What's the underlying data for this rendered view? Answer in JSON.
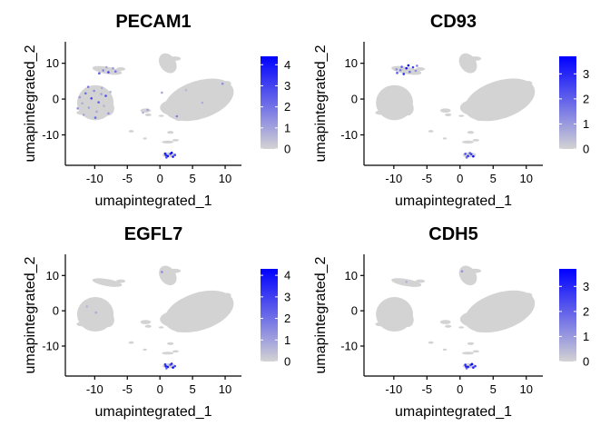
{
  "chart_data": [
    {
      "type": "scatter",
      "title": "PECAM1",
      "xlabel": "umapintegrated_1",
      "ylabel": "umapintegrated_2",
      "xlim": [
        -14.5,
        12.5
      ],
      "ylim": [
        -18.5,
        16
      ],
      "xticks": [
        -10,
        -5,
        0,
        5,
        10
      ],
      "yticks": [
        -10,
        0,
        10
      ],
      "xtick_labels": [
        "-10",
        "-5",
        "0",
        "5",
        "10"
      ],
      "ytick_labels": [
        "-10",
        "0",
        "10"
      ],
      "colorbar": {
        "min": 0,
        "max": 4.4,
        "ticks": [
          0,
          1,
          2,
          3,
          4
        ],
        "tick_labels": [
          "0",
          "1",
          "2",
          "3",
          "4"
        ],
        "low_color": "#d3d3d3",
        "high_color": "#0000ff"
      },
      "expressing_points": [
        {
          "x": -12.3,
          "y": 0.5,
          "v": 1.2
        },
        {
          "x": -11.9,
          "y": -1.2,
          "v": 0.8
        },
        {
          "x": -11.4,
          "y": 1.6,
          "v": 2.1
        },
        {
          "x": -10.9,
          "y": -2.4,
          "v": 1.0
        },
        {
          "x": -10.5,
          "y": 0.2,
          "v": 3.0
        },
        {
          "x": -10.1,
          "y": 2.3,
          "v": 1.5
        },
        {
          "x": -9.7,
          "y": -3.5,
          "v": 0.9
        },
        {
          "x": -9.4,
          "y": -0.9,
          "v": 2.4
        },
        {
          "x": -9.0,
          "y": 1.4,
          "v": 1.1
        },
        {
          "x": -8.6,
          "y": -1.9,
          "v": 0.7
        },
        {
          "x": -8.3,
          "y": 0.9,
          "v": 2.8
        },
        {
          "x": -7.9,
          "y": -4.0,
          "v": 1.3
        },
        {
          "x": -7.6,
          "y": 2.0,
          "v": 0.6
        },
        {
          "x": -11.0,
          "y": 3.4,
          "v": 1.9
        },
        {
          "x": -12.6,
          "y": -2.6,
          "v": 1.4
        },
        {
          "x": -9.9,
          "y": -5.2,
          "v": 2.2
        },
        {
          "x": -8.9,
          "y": 3.1,
          "v": 0.8
        },
        {
          "x": -11.7,
          "y": -4.4,
          "v": 1.0
        },
        {
          "x": -9.3,
          "y": 7.2,
          "v": 2.5
        },
        {
          "x": -8.7,
          "y": 8.0,
          "v": 1.6
        },
        {
          "x": -7.9,
          "y": 7.5,
          "v": 3.1
        },
        {
          "x": -7.2,
          "y": 8.6,
          "v": 1.2
        },
        {
          "x": -6.8,
          "y": 7.7,
          "v": 2.0
        },
        {
          "x": -8.2,
          "y": 8.9,
          "v": 0.9
        },
        {
          "x": -1.9,
          "y": -3.0,
          "v": 1.1
        },
        {
          "x": -2.6,
          "y": -3.8,
          "v": 0.7
        },
        {
          "x": 0.3,
          "y": 1.8,
          "v": 0.9
        },
        {
          "x": 2.6,
          "y": -4.8,
          "v": 1.7
        },
        {
          "x": 9.6,
          "y": 4.3,
          "v": 1.5
        },
        {
          "x": 6.5,
          "y": -1.0,
          "v": 0.8
        },
        {
          "x": 4.0,
          "y": 2.5,
          "v": 0.6
        },
        {
          "x": 0.8,
          "y": -15.2,
          "v": 3.8
        },
        {
          "x": 1.2,
          "y": -15.9,
          "v": 4.1
        },
        {
          "x": 1.6,
          "y": -15.3,
          "v": 3.3
        },
        {
          "x": 2.0,
          "y": -16.1,
          "v": 3.9
        },
        {
          "x": 1.0,
          "y": -16.3,
          "v": 2.8
        },
        {
          "x": 1.8,
          "y": -15.0,
          "v": 4.3
        },
        {
          "x": 2.3,
          "y": -15.6,
          "v": 3.0
        },
        {
          "x": 0.9,
          "y": -15.6,
          "v": 3.6
        }
      ]
    },
    {
      "type": "scatter",
      "title": "CD93",
      "xlabel": "umapintegrated_1",
      "ylabel": "umapintegrated_2",
      "xlim": [
        -14.5,
        12.5
      ],
      "ylim": [
        -18.5,
        16
      ],
      "xticks": [
        -10,
        -5,
        0,
        5,
        10
      ],
      "yticks": [
        -10,
        0,
        10
      ],
      "xtick_labels": [
        "-10",
        "-5",
        "0",
        "5",
        "10"
      ],
      "ytick_labels": [
        "-10",
        "0",
        "10"
      ],
      "colorbar": {
        "min": 0,
        "max": 3.7,
        "ticks": [
          0,
          1,
          2,
          3
        ],
        "tick_labels": [
          "0",
          "1",
          "2",
          "3"
        ],
        "low_color": "#d3d3d3",
        "high_color": "#0000ff"
      },
      "expressing_points": [
        {
          "x": -9.5,
          "y": 7.3,
          "v": 2.2
        },
        {
          "x": -9.0,
          "y": 8.1,
          "v": 1.6
        },
        {
          "x": -8.5,
          "y": 7.0,
          "v": 2.9
        },
        {
          "x": -8.1,
          "y": 8.6,
          "v": 3.4
        },
        {
          "x": -7.6,
          "y": 7.6,
          "v": 1.8
        },
        {
          "x": -7.1,
          "y": 8.9,
          "v": 2.6
        },
        {
          "x": -6.7,
          "y": 7.9,
          "v": 1.2
        },
        {
          "x": -8.8,
          "y": 9.0,
          "v": 2.0
        },
        {
          "x": -7.8,
          "y": 9.4,
          "v": 3.6
        },
        {
          "x": -6.5,
          "y": 9.3,
          "v": 1.4
        },
        {
          "x": -9.6,
          "y": 8.3,
          "v": 1.1
        },
        {
          "x": 0.8,
          "y": -15.3,
          "v": 2.4
        },
        {
          "x": 1.2,
          "y": -15.9,
          "v": 3.0
        },
        {
          "x": 1.7,
          "y": -15.4,
          "v": 2.7
        },
        {
          "x": 2.0,
          "y": -16.0,
          "v": 3.5
        },
        {
          "x": 1.0,
          "y": -16.3,
          "v": 1.8
        },
        {
          "x": 1.5,
          "y": -15.1,
          "v": 2.2
        }
      ]
    },
    {
      "type": "scatter",
      "title": "EGFL7",
      "xlabel": "umapintegrated_1",
      "ylabel": "umapintegrated_2",
      "xlim": [
        -14.5,
        12.5
      ],
      "ylim": [
        -18.5,
        16
      ],
      "xticks": [
        -10,
        -5,
        0,
        5,
        10
      ],
      "yticks": [
        -10,
        0,
        10
      ],
      "xtick_labels": [
        "-10",
        "-5",
        "0",
        "5",
        "10"
      ],
      "ytick_labels": [
        "-10",
        "0",
        "10"
      ],
      "colorbar": {
        "min": 0,
        "max": 4.3,
        "ticks": [
          0,
          1,
          2,
          3,
          4
        ],
        "tick_labels": [
          "0",
          "1",
          "2",
          "3",
          "4"
        ],
        "low_color": "#d3d3d3",
        "high_color": "#0000ff"
      },
      "expressing_points": [
        {
          "x": 0.3,
          "y": 11.0,
          "v": 1.5
        },
        {
          "x": -9.8,
          "y": -0.5,
          "v": 0.8
        },
        {
          "x": -11.2,
          "y": 1.2,
          "v": 0.6
        },
        {
          "x": 0.8,
          "y": -15.2,
          "v": 3.2
        },
        {
          "x": 1.2,
          "y": -15.9,
          "v": 3.9
        },
        {
          "x": 1.6,
          "y": -15.3,
          "v": 2.6
        },
        {
          "x": 2.0,
          "y": -16.1,
          "v": 4.1
        },
        {
          "x": 1.0,
          "y": -16.3,
          "v": 2.2
        },
        {
          "x": 1.8,
          "y": -15.0,
          "v": 3.5
        },
        {
          "x": 2.3,
          "y": -15.7,
          "v": 2.9
        },
        {
          "x": 0.9,
          "y": -15.7,
          "v": 3.7
        }
      ]
    },
    {
      "type": "scatter",
      "title": "CDH5",
      "xlabel": "umapintegrated_1",
      "ylabel": "umapintegrated_2",
      "xlim": [
        -14.5,
        12.5
      ],
      "ylim": [
        -18.5,
        16
      ],
      "xticks": [
        -10,
        -5,
        0,
        5,
        10
      ],
      "yticks": [
        -10,
        0,
        10
      ],
      "xtick_labels": [
        "-10",
        "-5",
        "0",
        "5",
        "10"
      ],
      "ytick_labels": [
        "-10",
        "0",
        "10"
      ],
      "colorbar": {
        "min": 0,
        "max": 3.7,
        "ticks": [
          0,
          1,
          2,
          3
        ],
        "tick_labels": [
          "0",
          "1",
          "2",
          "3"
        ],
        "low_color": "#d3d3d3",
        "high_color": "#0000ff"
      },
      "expressing_points": [
        {
          "x": 0.3,
          "y": 11.2,
          "v": 1.2
        },
        {
          "x": -8.1,
          "y": 8.2,
          "v": 0.6
        },
        {
          "x": 0.8,
          "y": -15.3,
          "v": 2.9
        },
        {
          "x": 1.2,
          "y": -15.9,
          "v": 3.5
        },
        {
          "x": 1.6,
          "y": -15.4,
          "v": 2.4
        },
        {
          "x": 2.0,
          "y": -16.1,
          "v": 3.2
        },
        {
          "x": 1.0,
          "y": -16.3,
          "v": 1.9
        },
        {
          "x": 1.8,
          "y": -15.1,
          "v": 3.6
        },
        {
          "x": 2.3,
          "y": -15.7,
          "v": 2.7
        },
        {
          "x": 0.9,
          "y": -15.8,
          "v": 3.0
        }
      ]
    }
  ]
}
